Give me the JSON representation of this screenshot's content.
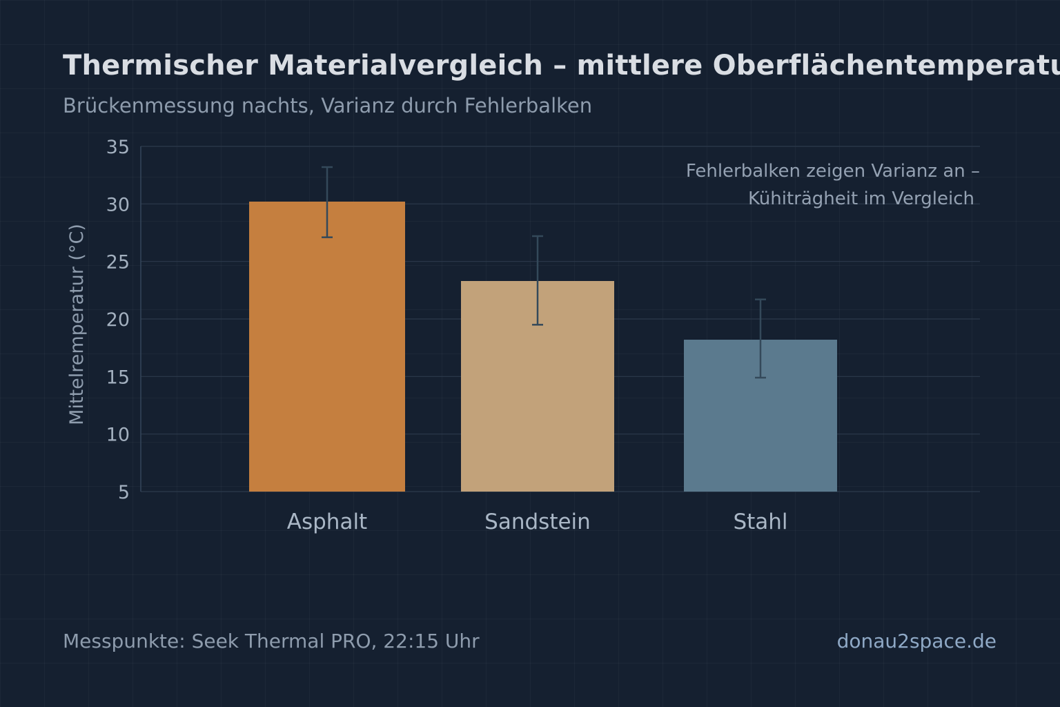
{
  "header": {
    "title": "Thermischer Materialvergleich – mittlere Oberflächentemperatur",
    "subtitle": "Brückenmessung nachts, Varianz durch Fehlerbalken"
  },
  "annotation": {
    "line1": "Fehlerbalken zeigen Varianz an –",
    "line2": "Kühiträgheit im Vergleich"
  },
  "footer": {
    "source": "Messpunkte: Seek Thermal PRO, 22:15 Uhr",
    "site": "donau2space.de"
  },
  "chart_data": {
    "type": "bar",
    "title": "Thermischer Materialvergleich – mittlere Oberflächentemperatur",
    "subtitle": "Brückenmessung nachts, Varianz durch Fehlerbalken",
    "xlabel": "",
    "ylabel": "Mittelremperatur (°C)",
    "categories": [
      "Asphalt",
      "Sandstein",
      "Stahl"
    ],
    "values": [
      30.2,
      23.3,
      18.2
    ],
    "error_low": [
      27.1,
      19.5,
      14.9
    ],
    "error_high": [
      33.2,
      27.2,
      21.7
    ],
    "colors": [
      "#c57f3f",
      "#c2a27a",
      "#5b7a8e"
    ],
    "error_color": "#34495a",
    "ylim": [
      5,
      35
    ],
    "yticks": [
      5,
      10,
      15,
      20,
      25,
      30,
      35
    ],
    "grid": true,
    "legend": "none"
  }
}
